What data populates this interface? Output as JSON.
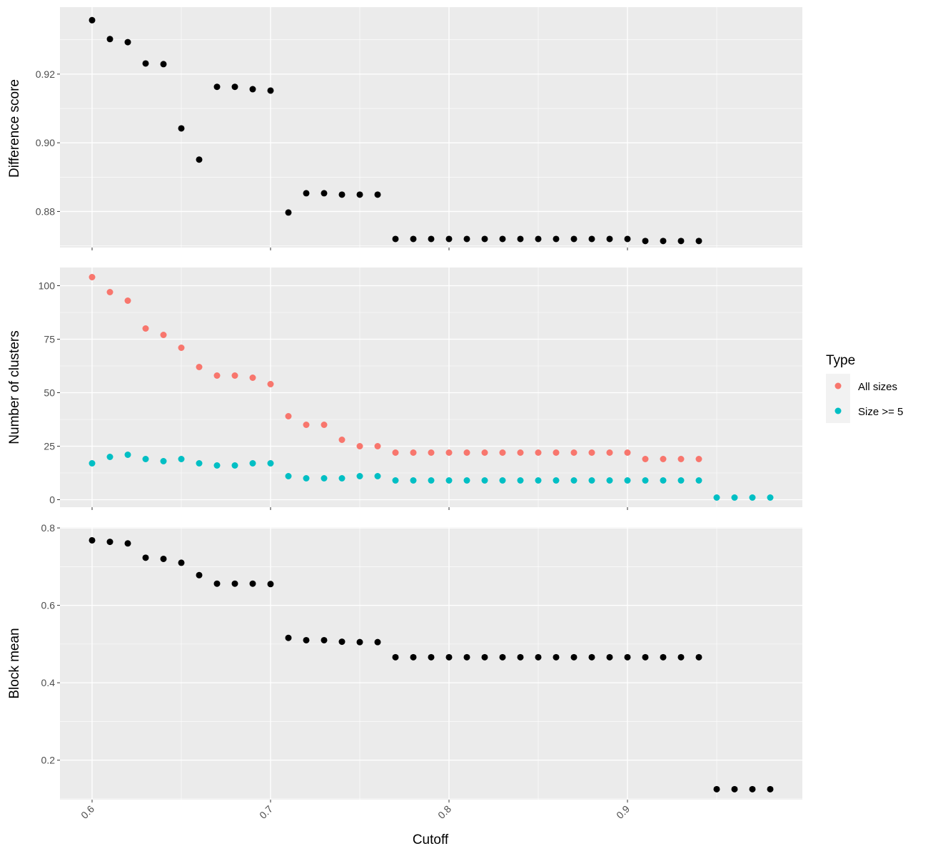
{
  "chart_data": {
    "type": "scatter",
    "xlabel": "Cutoff",
    "xlim": [
      0.582,
      0.998
    ],
    "x_ticks": [
      "0.6",
      "0.7",
      "0.8",
      "0.9"
    ],
    "x_tick_values": [
      0.6,
      0.7,
      0.8,
      0.9
    ],
    "panel_background": "#EBEBEB",
    "grid": true,
    "legend": {
      "title": "Type",
      "placement": "right",
      "entries": [
        {
          "label": "All sizes",
          "color": "#F8766D"
        },
        {
          "label": "Size >= 5",
          "color": "#00BFC4"
        }
      ]
    },
    "panels": [
      {
        "ylabel": "Difference score",
        "ylim": [
          0.8695,
          0.9395
        ],
        "y_ticks": [
          "0.88",
          "0.90",
          "0.92"
        ],
        "y_tick_values": [
          0.88,
          0.9,
          0.92
        ],
        "series": [
          {
            "color": "#000000",
            "x": [
              0.6,
              0.61,
              0.62,
              0.63,
              0.64,
              0.65,
              0.66,
              0.67,
              0.68,
              0.69,
              0.7,
              0.71,
              0.72,
              0.73,
              0.74,
              0.75,
              0.76,
              0.77,
              0.78,
              0.79,
              0.8,
              0.81,
              0.82,
              0.83,
              0.84,
              0.85,
              0.86,
              0.87,
              0.88,
              0.89,
              0.9,
              0.91,
              0.92,
              0.93,
              0.94
            ],
            "y": [
              0.9357,
              0.9302,
              0.9293,
              0.9231,
              0.9229,
              0.9042,
              0.8951,
              0.9163,
              0.9163,
              0.9156,
              0.9152,
              0.8797,
              0.8853,
              0.8853,
              0.8849,
              0.8849,
              0.8849,
              0.872,
              0.872,
              0.872,
              0.872,
              0.872,
              0.872,
              0.872,
              0.872,
              0.872,
              0.872,
              0.872,
              0.872,
              0.872,
              0.872,
              0.8714,
              0.8714,
              0.8714,
              0.8714
            ]
          }
        ]
      },
      {
        "ylabel": "Number of clusters",
        "ylim": [
          -3.5,
          108.5
        ],
        "y_ticks": [
          "0",
          "25",
          "50",
          "75",
          "100"
        ],
        "y_tick_values": [
          0,
          25,
          50,
          75,
          100
        ],
        "series": [
          {
            "name": "All sizes",
            "color": "#F8766D",
            "x": [
              0.6,
              0.61,
              0.62,
              0.63,
              0.64,
              0.65,
              0.66,
              0.67,
              0.68,
              0.69,
              0.7,
              0.71,
              0.72,
              0.73,
              0.74,
              0.75,
              0.76,
              0.77,
              0.78,
              0.79,
              0.8,
              0.81,
              0.82,
              0.83,
              0.84,
              0.85,
              0.86,
              0.87,
              0.88,
              0.89,
              0.9,
              0.91,
              0.92,
              0.93,
              0.94
            ],
            "y": [
              104,
              97,
              93,
              80,
              77,
              71,
              62,
              58,
              58,
              57,
              54,
              39,
              35,
              35,
              28,
              25,
              25,
              22,
              22,
              22,
              22,
              22,
              22,
              22,
              22,
              22,
              22,
              22,
              22,
              22,
              22,
              19,
              19,
              19,
              19
            ]
          },
          {
            "name": "Size >= 5",
            "color": "#00BFC4",
            "x": [
              0.6,
              0.61,
              0.62,
              0.63,
              0.64,
              0.65,
              0.66,
              0.67,
              0.68,
              0.69,
              0.7,
              0.71,
              0.72,
              0.73,
              0.74,
              0.75,
              0.76,
              0.77,
              0.78,
              0.79,
              0.8,
              0.81,
              0.82,
              0.83,
              0.84,
              0.85,
              0.86,
              0.87,
              0.88,
              0.89,
              0.9,
              0.91,
              0.92,
              0.93,
              0.94,
              0.95,
              0.96,
              0.97,
              0.98
            ],
            "y": [
              17,
              20,
              21,
              19,
              18,
              19,
              17,
              16,
              16,
              17,
              17,
              11,
              10,
              10,
              10,
              11,
              11,
              9,
              9,
              9,
              9,
              9,
              9,
              9,
              9,
              9,
              9,
              9,
              9,
              9,
              9,
              9,
              9,
              9,
              9,
              1,
              1,
              1,
              1
            ]
          }
        ]
      },
      {
        "ylabel": "Block mean",
        "ylim": [
          0.098,
          0.802
        ],
        "y_ticks": [
          "0.2",
          "0.4",
          "0.6",
          "0.8"
        ],
        "y_tick_values": [
          0.2,
          0.4,
          0.6,
          0.8
        ],
        "series": [
          {
            "color": "#000000",
            "x": [
              0.6,
              0.61,
              0.62,
              0.63,
              0.64,
              0.65,
              0.66,
              0.67,
              0.68,
              0.69,
              0.7,
              0.71,
              0.72,
              0.73,
              0.74,
              0.75,
              0.76,
              0.77,
              0.78,
              0.79,
              0.8,
              0.81,
              0.82,
              0.83,
              0.84,
              0.85,
              0.86,
              0.87,
              0.88,
              0.89,
              0.9,
              0.91,
              0.92,
              0.93,
              0.94,
              0.95,
              0.96,
              0.97,
              0.98
            ],
            "y": [
              0.768,
              0.764,
              0.76,
              0.723,
              0.72,
              0.71,
              0.678,
              0.656,
              0.656,
              0.656,
              0.655,
              0.516,
              0.51,
              0.51,
              0.506,
              0.505,
              0.505,
              0.466,
              0.466,
              0.466,
              0.466,
              0.466,
              0.466,
              0.466,
              0.466,
              0.466,
              0.466,
              0.466,
              0.466,
              0.466,
              0.466,
              0.466,
              0.466,
              0.466,
              0.466,
              0.125,
              0.125,
              0.125,
              0.125
            ]
          }
        ]
      }
    ]
  }
}
